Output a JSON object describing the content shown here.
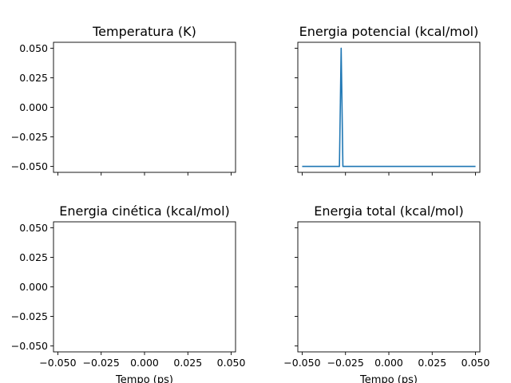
{
  "chart_data": [
    {
      "type": "line",
      "title": "Temperatura (K)",
      "xlabel": "",
      "ylabel": "",
      "xlim": [
        -0.0525,
        0.0525
      ],
      "ylim": [
        -0.055,
        0.055
      ],
      "xticks": [
        -0.05,
        -0.025,
        0.0,
        0.025,
        0.05
      ],
      "yticks": [
        -0.05,
        -0.025,
        0.0,
        0.025,
        0.05
      ],
      "xtick_labels": [],
      "ytick_labels": [
        "0.050",
        "0.025",
        "0.000",
        "−0.025",
        "−0.050"
      ],
      "series": []
    },
    {
      "type": "line",
      "title": "Energia potencial (kcal/mol)",
      "xlabel": "",
      "ylabel": "",
      "xlim": [
        -0.0525,
        0.0525
      ],
      "ylim": [
        -0.055,
        0.055
      ],
      "xticks": [
        -0.05,
        -0.025,
        0.0,
        0.025,
        0.05
      ],
      "yticks": [
        -0.05,
        -0.025,
        0.0,
        0.025,
        0.05
      ],
      "xtick_labels": [],
      "ytick_labels": [],
      "series": [
        {
          "color": "#1f77b4",
          "x": [
            -0.05,
            -0.0285,
            -0.0275,
            -0.0265,
            0.05
          ],
          "y": [
            -0.05,
            -0.05,
            0.05,
            -0.05,
            -0.05
          ]
        }
      ]
    },
    {
      "type": "line",
      "title": "Energia cinética (kcal/mol)",
      "xlabel": "Tempo (ps)",
      "ylabel": "",
      "xlim": [
        -0.0525,
        0.0525
      ],
      "ylim": [
        -0.055,
        0.055
      ],
      "xticks": [
        -0.05,
        -0.025,
        0.0,
        0.025,
        0.05
      ],
      "yticks": [
        -0.05,
        -0.025,
        0.0,
        0.025,
        0.05
      ],
      "xtick_labels": [
        "−0.050",
        "−0.025",
        "0.000",
        "0.025",
        "0.050"
      ],
      "ytick_labels": [
        "0.050",
        "0.025",
        "0.000",
        "−0.025",
        "−0.050"
      ],
      "series": []
    },
    {
      "type": "line",
      "title": "Energia total (kcal/mol)",
      "xlabel": "Tempo (ps)",
      "ylabel": "",
      "xlim": [
        -0.0525,
        0.0525
      ],
      "ylim": [
        -0.055,
        0.055
      ],
      "xticks": [
        -0.05,
        -0.025,
        0.0,
        0.025,
        0.05
      ],
      "yticks": [
        -0.05,
        -0.025,
        0.0,
        0.025,
        0.05
      ],
      "xtick_labels": [
        "−0.050",
        "−0.025",
        "0.000",
        "0.025",
        "0.050"
      ],
      "ytick_labels": [],
      "series": []
    }
  ]
}
